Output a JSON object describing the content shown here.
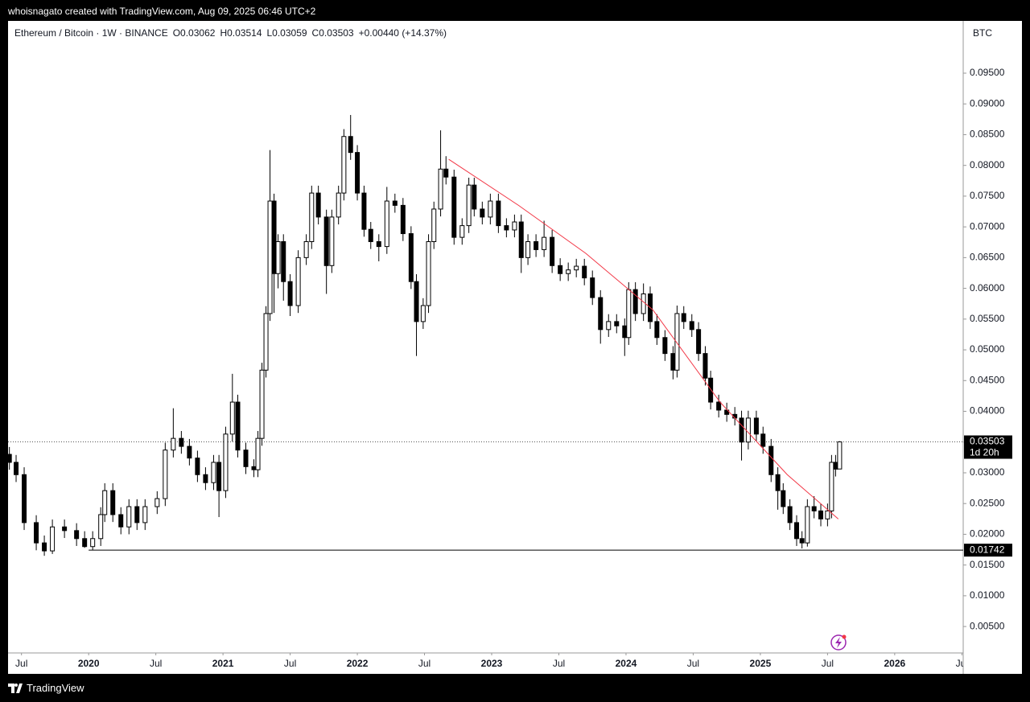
{
  "header": {
    "watermark": "whoisnagato created with TradingView.com, Aug 09, 2025 06:46 UTC+2",
    "symbol": "Ethereum / Bitcoin · 1W · BINANCE",
    "ohlc": [
      "O0.03062",
      "H0.03514",
      "L0.03059",
      "C0.03503",
      "+0.00440 (+14.37%)"
    ],
    "currency": "BTC",
    "footer": "TradingView"
  },
  "chart_data": {
    "type": "candlestick",
    "up_color": "#ffffff",
    "down_color": "#000000",
    "border_color": "#000000",
    "grid": false,
    "xlim": [
      2019.4,
      2026.51
    ],
    "ylim": [
      0.0007,
      0.1035
    ],
    "xticks": [
      {
        "value": 2019.5,
        "label": "Jul"
      },
      2020,
      {
        "value": 2020.5,
        "label": "Jul"
      },
      2021,
      {
        "value": 2021.5,
        "label": "Jul"
      },
      2022,
      {
        "value": 2022.5,
        "label": "Jul"
      },
      2023,
      {
        "value": 2023.5,
        "label": "Jul"
      },
      2024,
      {
        "value": 2024.5,
        "label": "Jul"
      },
      2025,
      {
        "value": 2025.5,
        "label": "Jul"
      },
      2026,
      {
        "value": 2026.5,
        "label": "Jul"
      }
    ],
    "yticks": [
      {
        "value": 0.005,
        "label": "0.00500"
      },
      {
        "value": 0.01,
        "label": "0.01000"
      },
      {
        "value": 0.015,
        "label": "0.01500"
      },
      {
        "value": 0.02,
        "label": "0.02000"
      },
      {
        "value": 0.025,
        "label": "0.02500"
      },
      {
        "value": 0.03,
        "label": "0.03000"
      },
      {
        "value": 0.035,
        "label": "0.03500"
      },
      {
        "value": 0.04,
        "label": "0.04000"
      },
      {
        "value": 0.045,
        "label": "0.04500"
      },
      {
        "value": 0.05,
        "label": "0.05000"
      },
      {
        "value": 0.055,
        "label": "0.05500"
      },
      {
        "value": 0.06,
        "label": "0.06000"
      },
      {
        "value": 0.065,
        "label": "0.06500"
      },
      {
        "value": 0.07,
        "label": "0.07000"
      },
      {
        "value": 0.075,
        "label": "0.07500"
      },
      {
        "value": 0.08,
        "label": "0.08000"
      },
      {
        "value": 0.085,
        "label": "0.08500"
      },
      {
        "value": 0.09,
        "label": "0.09000"
      },
      {
        "value": 0.095,
        "label": "0.09500"
      }
    ],
    "x": [
      2019.41,
      2019.46,
      2019.52,
      2019.61,
      2019.67,
      2019.73,
      2019.82,
      2019.91,
      2019.97,
      2020.03,
      2020.09,
      2020.12,
      2020.18,
      2020.24,
      2020.3,
      2020.36,
      2020.42,
      2020.51,
      2020.57,
      2020.63,
      2020.69,
      2020.75,
      2020.81,
      2020.87,
      2020.93,
      2020.97,
      2021.02,
      2021.07,
      2021.11,
      2021.17,
      2021.23,
      2021.26,
      2021.29,
      2021.32,
      2021.35,
      2021.38,
      2021.41,
      2021.45,
      2021.5,
      2021.56,
      2021.62,
      2021.66,
      2021.71,
      2021.77,
      2021.81,
      2021.86,
      2021.9,
      2021.95,
      2022.0,
      2022.05,
      2022.1,
      2022.16,
      2022.22,
      2022.28,
      2022.34,
      2022.4,
      2022.44,
      2022.49,
      2022.53,
      2022.57,
      2022.62,
      2022.66,
      2022.72,
      2022.78,
      2022.83,
      2022.87,
      2022.93,
      2022.99,
      2023.05,
      2023.11,
      2023.17,
      2023.22,
      2023.27,
      2023.33,
      2023.39,
      2023.45,
      2023.51,
      2023.57,
      2023.63,
      2023.69,
      2023.75,
      2023.81,
      2023.87,
      2023.93,
      2023.99,
      2024.02,
      2024.07,
      2024.13,
      2024.18,
      2024.23,
      2024.29,
      2024.35,
      2024.38,
      2024.43,
      2024.49,
      2024.54,
      2024.59,
      2024.63,
      2024.69,
      2024.75,
      2024.81,
      2024.86,
      2024.91,
      2024.97,
      2025.02,
      2025.08,
      2025.13,
      2025.17,
      2025.22,
      2025.27,
      2025.31,
      2025.35,
      2025.4,
      2025.45,
      2025.5,
      2025.53,
      2025.56,
      2025.59
    ],
    "open": [
      0.033,
      0.0317,
      0.0297,
      0.0219,
      0.0186,
      0.0173,
      0.0212,
      0.0206,
      0.0193,
      0.018,
      0.0193,
      0.0232,
      0.0271,
      0.0232,
      0.0212,
      0.0245,
      0.0219,
      0.0245,
      0.0258,
      0.0337,
      0.0356,
      0.0343,
      0.0324,
      0.0297,
      0.0284,
      0.0317,
      0.0271,
      0.0363,
      0.0415,
      0.0337,
      0.031,
      0.0305,
      0.0356,
      0.0467,
      0.0559,
      0.0742,
      0.0624,
      0.0676,
      0.0611,
      0.0572,
      0.065,
      0.0676,
      0.0755,
      0.0716,
      0.0637,
      0.0716,
      0.0755,
      0.0847,
      0.0821,
      0.0755,
      0.0696,
      0.0676,
      0.0668,
      0.0742,
      0.0735,
      0.0689,
      0.0611,
      0.0546,
      0.0572,
      0.0676,
      0.0729,
      0.0794,
      0.0781,
      0.0683,
      0.0702,
      0.0768,
      0.0729,
      0.0716,
      0.0742,
      0.0702,
      0.0695,
      0.0708,
      0.065,
      0.0676,
      0.0663,
      0.0683,
      0.0637,
      0.0624,
      0.063,
      0.0636,
      0.0617,
      0.0585,
      0.0533,
      0.0546,
      0.0539,
      0.052,
      0.0598,
      0.0559,
      0.0591,
      0.0546,
      0.052,
      0.0494,
      0.0467,
      0.0559,
      0.0546,
      0.0533,
      0.0494,
      0.0454,
      0.0415,
      0.0402,
      0.0395,
      0.0389,
      0.035,
      0.0389,
      0.0363,
      0.0343,
      0.0297,
      0.0271,
      0.0245,
      0.0219,
      0.0193,
      0.0186,
      0.0245,
      0.0238,
      0.0225,
      0.0238,
      0.0317,
      0.03062
    ],
    "high": [
      0.0342,
      0.0329,
      0.0309,
      0.0231,
      0.0198,
      0.0224,
      0.0224,
      0.0218,
      0.0205,
      0.0205,
      0.0244,
      0.0283,
      0.0283,
      0.0244,
      0.0257,
      0.0257,
      0.0257,
      0.027,
      0.0349,
      0.0405,
      0.0368,
      0.0355,
      0.0336,
      0.0309,
      0.0329,
      0.0329,
      0.0375,
      0.0461,
      0.0427,
      0.0349,
      0.0322,
      0.0368,
      0.0479,
      0.0571,
      0.0825,
      0.0754,
      0.0688,
      0.0688,
      0.0623,
      0.0662,
      0.0688,
      0.0767,
      0.0767,
      0.0728,
      0.0728,
      0.0767,
      0.0859,
      0.0882,
      0.0833,
      0.0767,
      0.0708,
      0.0688,
      0.0765,
      0.0754,
      0.0747,
      0.0701,
      0.0623,
      0.0584,
      0.0688,
      0.0741,
      0.0857,
      0.0815,
      0.0793,
      0.0714,
      0.078,
      0.078,
      0.0741,
      0.0754,
      0.0754,
      0.0714,
      0.072,
      0.072,
      0.0688,
      0.0688,
      0.071,
      0.0695,
      0.0649,
      0.0642,
      0.0648,
      0.0648,
      0.0629,
      0.0597,
      0.0558,
      0.0558,
      0.0551,
      0.061,
      0.061,
      0.0608,
      0.0603,
      0.0558,
      0.0532,
      0.0506,
      0.0572,
      0.0571,
      0.0558,
      0.0545,
      0.0506,
      0.0466,
      0.0427,
      0.0414,
      0.0407,
      0.0401,
      0.0401,
      0.0401,
      0.0375,
      0.0355,
      0.0309,
      0.0283,
      0.0257,
      0.0231,
      0.0205,
      0.0257,
      0.0262,
      0.025,
      0.025,
      0.0329,
      0.0329,
      0.03514
    ],
    "low": [
      0.0305,
      0.0285,
      0.0207,
      0.0174,
      0.0165,
      0.0168,
      0.0194,
      0.0181,
      0.0178,
      0.01742,
      0.0181,
      0.022,
      0.022,
      0.02,
      0.02,
      0.0207,
      0.0207,
      0.0233,
      0.0246,
      0.0325,
      0.0331,
      0.0312,
      0.0285,
      0.0272,
      0.0272,
      0.0228,
      0.0259,
      0.0351,
      0.0325,
      0.0298,
      0.0293,
      0.0293,
      0.0344,
      0.0455,
      0.0547,
      0.056,
      0.06,
      0.058,
      0.0555,
      0.056,
      0.0638,
      0.0664,
      0.0704,
      0.0591,
      0.0625,
      0.0704,
      0.0743,
      0.0809,
      0.0743,
      0.0684,
      0.0664,
      0.0644,
      0.0656,
      0.0723,
      0.0677,
      0.0599,
      0.049,
      0.0534,
      0.056,
      0.0664,
      0.0717,
      0.0769,
      0.0671,
      0.0671,
      0.069,
      0.0717,
      0.0704,
      0.0704,
      0.069,
      0.0683,
      0.0683,
      0.0625,
      0.0638,
      0.0651,
      0.0651,
      0.0625,
      0.0612,
      0.0612,
      0.0618,
      0.0605,
      0.0573,
      0.051,
      0.0521,
      0.0527,
      0.049,
      0.0508,
      0.0547,
      0.0547,
      0.0534,
      0.0508,
      0.0482,
      0.0452,
      0.0455,
      0.0534,
      0.0521,
      0.0482,
      0.0442,
      0.0403,
      0.039,
      0.0383,
      0.0377,
      0.032,
      0.0338,
      0.0351,
      0.0331,
      0.0285,
      0.024,
      0.0233,
      0.0207,
      0.0181,
      0.0177,
      0.018,
      0.0226,
      0.0213,
      0.0213,
      0.0226,
      0.0294,
      0.03059
    ],
    "close": [
      0.0317,
      0.0297,
      0.0219,
      0.0186,
      0.0173,
      0.0212,
      0.0206,
      0.0193,
      0.018,
      0.0193,
      0.0232,
      0.0271,
      0.0232,
      0.0212,
      0.0245,
      0.0219,
      0.0245,
      0.0258,
      0.0337,
      0.0356,
      0.0343,
      0.0324,
      0.0297,
      0.0284,
      0.0317,
      0.0271,
      0.0363,
      0.0415,
      0.0337,
      0.031,
      0.0305,
      0.0356,
      0.0467,
      0.0559,
      0.0742,
      0.0624,
      0.0676,
      0.0611,
      0.0572,
      0.065,
      0.0676,
      0.0755,
      0.0716,
      0.0637,
      0.0716,
      0.0755,
      0.0847,
      0.0821,
      0.0755,
      0.0696,
      0.0676,
      0.0668,
      0.0742,
      0.0735,
      0.0689,
      0.0611,
      0.0546,
      0.0572,
      0.0676,
      0.0729,
      0.0794,
      0.0781,
      0.0683,
      0.0702,
      0.0768,
      0.0729,
      0.0716,
      0.0742,
      0.0702,
      0.0695,
      0.0708,
      0.065,
      0.0676,
      0.0663,
      0.0683,
      0.0637,
      0.0624,
      0.063,
      0.0636,
      0.0617,
      0.0585,
      0.0533,
      0.0546,
      0.0539,
      0.052,
      0.0598,
      0.0559,
      0.0591,
      0.0546,
      0.052,
      0.0494,
      0.0467,
      0.0559,
      0.0546,
      0.0533,
      0.0494,
      0.0454,
      0.0415,
      0.0402,
      0.0395,
      0.0389,
      0.035,
      0.0389,
      0.0363,
      0.0343,
      0.0297,
      0.0271,
      0.0245,
      0.0219,
      0.0193,
      0.0186,
      0.0245,
      0.0238,
      0.0225,
      0.0238,
      0.0317,
      0.0306,
      0.03503
    ],
    "last_price": {
      "value": 0.03503,
      "countdown": "1d 20h",
      "color": "#000000"
    },
    "price_line": {
      "value": 0.01742,
      "x_start": 2020.0,
      "color": "#000000"
    },
    "curve": {
      "color": "#f23645",
      "x": [
        2022.68,
        2023.2,
        2023.7,
        2024.2,
        2024.7,
        2025.2,
        2025.58
      ],
      "y": [
        0.081,
        0.0735,
        0.0657,
        0.0565,
        0.0415,
        0.0297,
        0.0225
      ]
    }
  }
}
